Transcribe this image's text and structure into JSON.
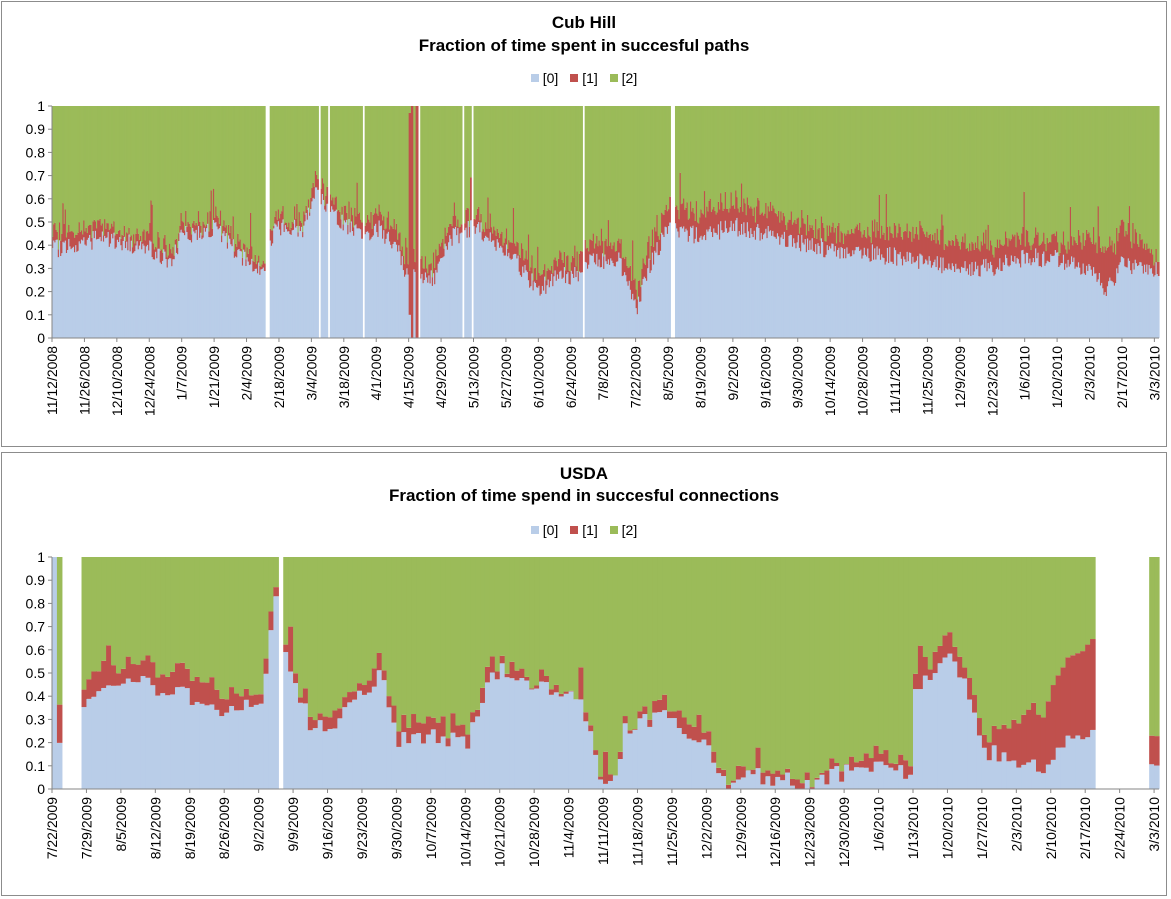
{
  "colors": {
    "s0": "#b9cde8",
    "s1": "#c0504d",
    "s2": "#9bbb59",
    "border": "#8c8c8c"
  },
  "chart_data": [
    {
      "type": "bar",
      "stacked": true,
      "title": "Cub Hill",
      "subtitle": "Fraction of time spent in succesful paths",
      "legend": [
        "[0]",
        "[1]",
        "[2]"
      ],
      "legend_position": "top",
      "ylim": [
        0,
        1
      ],
      "yticks": [
        "0",
        "0.1",
        "0.2",
        "0.3",
        "0.4",
        "0.5",
        "0.6",
        "0.7",
        "0.8",
        "0.9",
        "1"
      ],
      "xticks": [
        "11/12/2008",
        "11/26/2008",
        "12/10/2008",
        "12/24/2008",
        "1/7/2009",
        "1/21/2009",
        "2/4/2009",
        "2/18/2009",
        "3/4/2009",
        "3/18/2009",
        "4/1/2009",
        "4/15/2009",
        "4/29/2009",
        "5/13/2009",
        "5/27/2009",
        "6/10/2009",
        "6/24/2009",
        "7/8/2009",
        "7/22/2009",
        "8/5/2009",
        "8/19/2009",
        "9/2/2009",
        "9/16/2009",
        "9/30/2009",
        "10/14/2009",
        "10/28/2009",
        "11/11/2009",
        "11/25/2009",
        "12/9/2009",
        "12/23/2009",
        "1/6/2010",
        "1/20/2010",
        "2/3/2010",
        "2/17/2010",
        "3/3/2010"
      ],
      "x_start": "11/12/2008",
      "x_end": "3/5/2010",
      "gaps": [
        [
          "2/12/2009",
          "2/14/2009"
        ],
        [
          "3/7/2009",
          "3/8/2009"
        ],
        [
          "3/11/2009",
          "3/12/2009"
        ],
        [
          "3/26/2009",
          "3/27/2009"
        ],
        [
          "4/19/2009",
          "4/20/2009"
        ],
        [
          "5/8/2009",
          "5/9/2009"
        ],
        [
          "5/12/2009",
          "5/13/2009"
        ],
        [
          "6/29/2009",
          "6/30/2009"
        ],
        [
          "8/6/2009",
          "8/8/2009"
        ]
      ],
      "spikes": [
        {
          "date": "4/15/2009",
          "s0": 0.1,
          "s1": 0.87
        },
        {
          "date": "4/16/2009",
          "s0": 0,
          "s1": 1
        },
        {
          "date": "4/18/2009",
          "s0": 0,
          "s1": 1
        }
      ],
      "series": [
        {
          "name": "[0]",
          "anchors": [
            [
              "11/12/2008",
              0.38
            ],
            [
              "12/3/2008",
              0.43
            ],
            [
              "12/24/2008",
              0.39
            ],
            [
              "1/2/2009",
              0.32
            ],
            [
              "1/7/2009",
              0.44
            ],
            [
              "1/21/2009",
              0.47
            ],
            [
              "2/4/2009",
              0.33
            ],
            [
              "2/12/2009",
              0.3
            ],
            [
              "2/16/2009",
              0.48
            ],
            [
              "2/28/2009",
              0.47
            ],
            [
              "3/6/2009",
              0.66
            ],
            [
              "3/10/2009",
              0.55
            ],
            [
              "3/24/2009",
              0.45
            ],
            [
              "4/2/2009",
              0.47
            ],
            [
              "4/10/2009",
              0.38
            ],
            [
              "4/13/2009",
              0.28
            ],
            [
              "4/26/2009",
              0.26
            ],
            [
              "5/3/2009",
              0.43
            ],
            [
              "5/13/2009",
              0.48
            ],
            [
              "5/27/2009",
              0.38
            ],
            [
              "6/10/2009",
              0.2
            ],
            [
              "6/17/2009",
              0.27
            ],
            [
              "6/28/2009",
              0.27
            ],
            [
              "7/3/2009",
              0.34
            ],
            [
              "7/15/2009",
              0.33
            ],
            [
              "7/22/2009",
              0.12
            ],
            [
              "7/28/2009",
              0.32
            ],
            [
              "8/5/2009",
              0.47
            ],
            [
              "8/19/2009",
              0.44
            ],
            [
              "9/2/2009",
              0.48
            ],
            [
              "9/9/2009",
              0.47
            ],
            [
              "9/20/2009",
              0.44
            ],
            [
              "10/14/2009",
              0.38
            ],
            [
              "10/28/2009",
              0.37
            ],
            [
              "11/11/2009",
              0.35
            ],
            [
              "11/25/2009",
              0.32
            ],
            [
              "12/9/2009",
              0.31
            ],
            [
              "12/23/2009",
              0.3
            ],
            [
              "1/6/2010",
              0.35
            ],
            [
              "1/20/2010",
              0.34
            ],
            [
              "2/3/2010",
              0.3
            ],
            [
              "2/10/2010",
              0.2
            ],
            [
              "2/17/2010",
              0.32
            ],
            [
              "3/3/2010",
              0.3
            ]
          ]
        },
        {
          "name": "[1]",
          "anchors": [
            [
              "11/12/2008",
              0.06
            ],
            [
              "1/21/2009",
              0.04
            ],
            [
              "2/18/2009",
              0.04
            ],
            [
              "3/18/2009",
              0.05
            ],
            [
              "4/8/2009",
              0.07
            ],
            [
              "5/13/2009",
              0.05
            ],
            [
              "6/10/2009",
              0.06
            ],
            [
              "7/22/2009",
              0.08
            ],
            [
              "8/12/2009",
              0.1
            ],
            [
              "9/9/2009",
              0.1
            ],
            [
              "10/14/2009",
              0.08
            ],
            [
              "11/25/2009",
              0.12
            ],
            [
              "12/23/2009",
              0.1
            ],
            [
              "1/20/2010",
              0.07
            ],
            [
              "2/10/2010",
              0.17
            ],
            [
              "3/3/2010",
              0.07
            ]
          ]
        },
        {
          "name": "[2]",
          "values": "remainder to 1"
        }
      ]
    },
    {
      "type": "bar",
      "stacked": true,
      "title": "USDA",
      "subtitle": "Fraction of time spend in succesful connections",
      "legend": [
        "[0]",
        "[1]",
        "[2]"
      ],
      "legend_position": "top",
      "ylim": [
        0,
        1
      ],
      "yticks": [
        "0",
        "0.1",
        "0.2",
        "0.3",
        "0.4",
        "0.5",
        "0.6",
        "0.7",
        "0.8",
        "0.9",
        "1"
      ],
      "xticks": [
        "7/22/2009",
        "7/29/2009",
        "8/5/2009",
        "8/12/2009",
        "8/19/2009",
        "8/26/2009",
        "9/2/2009",
        "9/9/2009",
        "9/16/2009",
        "9/23/2009",
        "9/30/2009",
        "10/7/2009",
        "10/14/2009",
        "10/21/2009",
        "10/28/2009",
        "11/4/2009",
        "11/11/2009",
        "11/18/2009",
        "11/25/2009",
        "12/2/2009",
        "12/9/2009",
        "12/16/2009",
        "12/23/2009",
        "12/30/2009",
        "1/6/2010",
        "1/13/2010",
        "1/20/2010",
        "1/27/2010",
        "2/3/2010",
        "2/10/2010",
        "2/17/2010",
        "2/24/2010",
        "3/3/2010"
      ],
      "x_start": "7/22/2009",
      "x_end": "3/4/2010",
      "gaps": [
        [
          "7/24/2009",
          "7/28/2009"
        ],
        [
          "9/6/2009",
          "9/7/2009"
        ],
        [
          "2/19/2010",
          "3/2/2010"
        ]
      ],
      "series": [
        {
          "name": "[0]",
          "anchors": [
            [
              "7/22/2009",
              1.0
            ],
            [
              "7/23/2009",
              0.16
            ],
            [
              "7/28/2009",
              0.32
            ],
            [
              "7/31/2009",
              0.42
            ],
            [
              "8/3/2009",
              0.45
            ],
            [
              "8/7/2009",
              0.5
            ],
            [
              "8/12/2009",
              0.43
            ],
            [
              "8/19/2009",
              0.4
            ],
            [
              "8/26/2009",
              0.32
            ],
            [
              "9/2/2009",
              0.4
            ],
            [
              "9/5/2009",
              0.8
            ],
            [
              "9/8/2009",
              0.52
            ],
            [
              "9/12/2009",
              0.28
            ],
            [
              "9/16/2009",
              0.26
            ],
            [
              "9/23/2009",
              0.42
            ],
            [
              "9/26/2009",
              0.5
            ],
            [
              "9/30/2009",
              0.22
            ],
            [
              "10/7/2009",
              0.23
            ],
            [
              "10/14/2009",
              0.2
            ],
            [
              "10/18/2009",
              0.48
            ],
            [
              "10/21/2009",
              0.52
            ],
            [
              "10/28/2009",
              0.46
            ],
            [
              "11/4/2009",
              0.42
            ],
            [
              "11/8/2009",
              0.28
            ],
            [
              "11/10/2009",
              0.04
            ],
            [
              "11/13/2009",
              0.04
            ],
            [
              "11/15/2009",
              0.26
            ],
            [
              "11/20/2009",
              0.3
            ],
            [
              "11/25/2009",
              0.3
            ],
            [
              "12/2/2009",
              0.16
            ],
            [
              "12/6/2009",
              0.03
            ],
            [
              "12/9/2009",
              0.08
            ],
            [
              "12/16/2009",
              0.04
            ],
            [
              "12/23/2009",
              0.02
            ],
            [
              "12/27/2009",
              0.06
            ],
            [
              "12/30/2009",
              0.07
            ],
            [
              "1/6/2010",
              0.1
            ],
            [
              "1/12/2010",
              0.06
            ],
            [
              "1/13/2010",
              0.45
            ],
            [
              "1/20/2010",
              0.56
            ],
            [
              "1/24/2010",
              0.4
            ],
            [
              "1/27/2010",
              0.16
            ],
            [
              "2/3/2010",
              0.12
            ],
            [
              "2/8/2010",
              0.08
            ],
            [
              "2/12/2010",
              0.2
            ],
            [
              "2/17/2010",
              0.25
            ],
            [
              "3/3/2010",
              0.13
            ]
          ]
        },
        {
          "name": "[1]",
          "anchors": [
            [
              "7/22/2009",
              0.0
            ],
            [
              "7/23/2009",
              0.18
            ],
            [
              "7/28/2009",
              0.1
            ],
            [
              "8/5/2009",
              0.08
            ],
            [
              "8/19/2009",
              0.1
            ],
            [
              "9/2/2009",
              0.06
            ],
            [
              "9/9/2009",
              0.05
            ],
            [
              "10/7/2009",
              0.06
            ],
            [
              "11/11/2009",
              0.01
            ],
            [
              "11/25/2009",
              0.05
            ],
            [
              "12/9/2009",
              0.03
            ],
            [
              "12/30/2009",
              0.03
            ],
            [
              "1/13/2010",
              0.06
            ],
            [
              "1/27/2010",
              0.08
            ],
            [
              "2/10/2010",
              0.3
            ],
            [
              "2/17/2010",
              0.4
            ],
            [
              "3/3/2010",
              0.11
            ]
          ]
        },
        {
          "name": "[2]",
          "values": "remainder to 1"
        }
      ]
    }
  ]
}
